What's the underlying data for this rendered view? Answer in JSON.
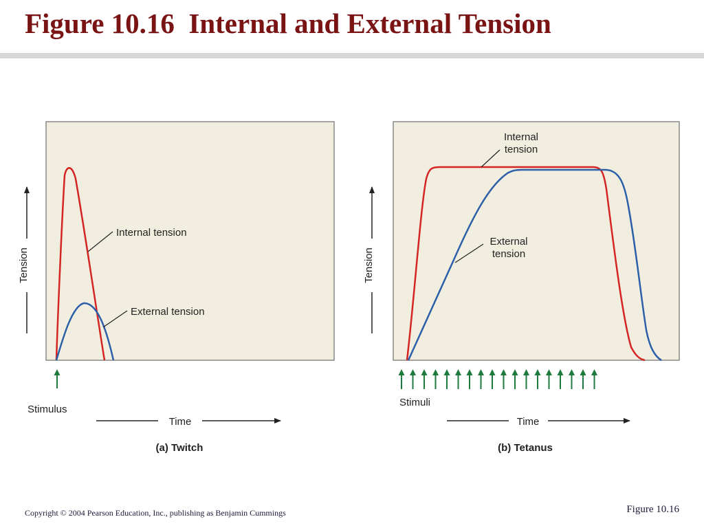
{
  "slide": {
    "title": "Figure 10.16  Internal and External Tension",
    "copyright": "Copyright © 2004 Pearson Education, Inc., publishing as Benjamin Cummings",
    "figure_ref": "Figure 10.16"
  },
  "colors": {
    "title": "#7a1414",
    "internal_tension": "#d42424",
    "external_tension": "#2c5fa8",
    "stimulus_arrow": "#1e7a3c",
    "plot_background": "#f1eee0"
  },
  "panel_a": {
    "caption": "(a) Twitch",
    "y_axis_label": "Tension",
    "x_axis_label": "Time",
    "stimulus_label": "Stimulus",
    "stimulus_count": 1,
    "internal_label": "Internal tension",
    "external_label": "External tension"
  },
  "panel_b": {
    "caption": "(b) Tetanus",
    "y_axis_label": "Tension",
    "x_axis_label": "Time",
    "stimulus_label": "Stimuli",
    "stimulus_count": 18,
    "internal_label_line1": "Internal",
    "internal_label_line2": "tension",
    "external_label_line1": "External",
    "external_label_line2": "tension"
  }
}
